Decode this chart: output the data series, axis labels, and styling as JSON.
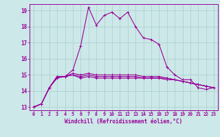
{
  "xlabel": "Windchill (Refroidissement éolien,°C)",
  "hours": [
    0,
    1,
    2,
    3,
    4,
    5,
    6,
    7,
    8,
    9,
    10,
    11,
    12,
    13,
    14,
    15,
    16,
    17,
    18,
    19,
    20,
    21,
    22,
    23
  ],
  "series": [
    [
      13.0,
      13.2,
      14.2,
      14.9,
      14.9,
      15.3,
      16.8,
      19.2,
      18.1,
      18.7,
      18.9,
      18.5,
      18.9,
      18.0,
      17.3,
      17.2,
      16.9,
      15.5,
      15.0,
      14.7,
      14.7,
      14.2,
      14.1,
      14.2
    ],
    [
      13.0,
      13.2,
      14.2,
      14.9,
      14.9,
      15.0,
      14.8,
      14.9,
      14.8,
      14.8,
      14.8,
      14.8,
      14.8,
      14.8,
      14.8,
      14.8,
      14.8,
      14.8,
      14.7,
      14.6,
      14.5,
      14.4,
      14.3,
      14.2
    ],
    [
      13.0,
      13.2,
      14.2,
      14.8,
      14.9,
      15.0,
      14.9,
      15.0,
      14.9,
      14.9,
      14.9,
      14.9,
      14.9,
      14.9,
      14.8,
      14.8,
      14.8,
      14.7,
      14.7,
      14.6,
      14.5,
      14.4,
      14.3,
      14.2
    ],
    [
      13.0,
      13.2,
      14.2,
      14.9,
      14.9,
      15.1,
      15.0,
      15.1,
      15.0,
      15.0,
      15.0,
      15.0,
      15.0,
      15.0,
      14.9,
      14.9,
      14.9,
      14.8,
      14.7,
      14.6,
      14.5,
      14.4,
      14.3,
      14.2
    ]
  ],
  "line_color": "#990099",
  "bg_color": "#cce8e8",
  "grid_color": "#aacccc",
  "ylim_min": 12.8,
  "ylim_max": 19.4,
  "yticks": [
    13,
    14,
    15,
    16,
    17,
    18,
    19
  ],
  "xlim_min": -0.5,
  "xlim_max": 23.5,
  "marker": "+"
}
